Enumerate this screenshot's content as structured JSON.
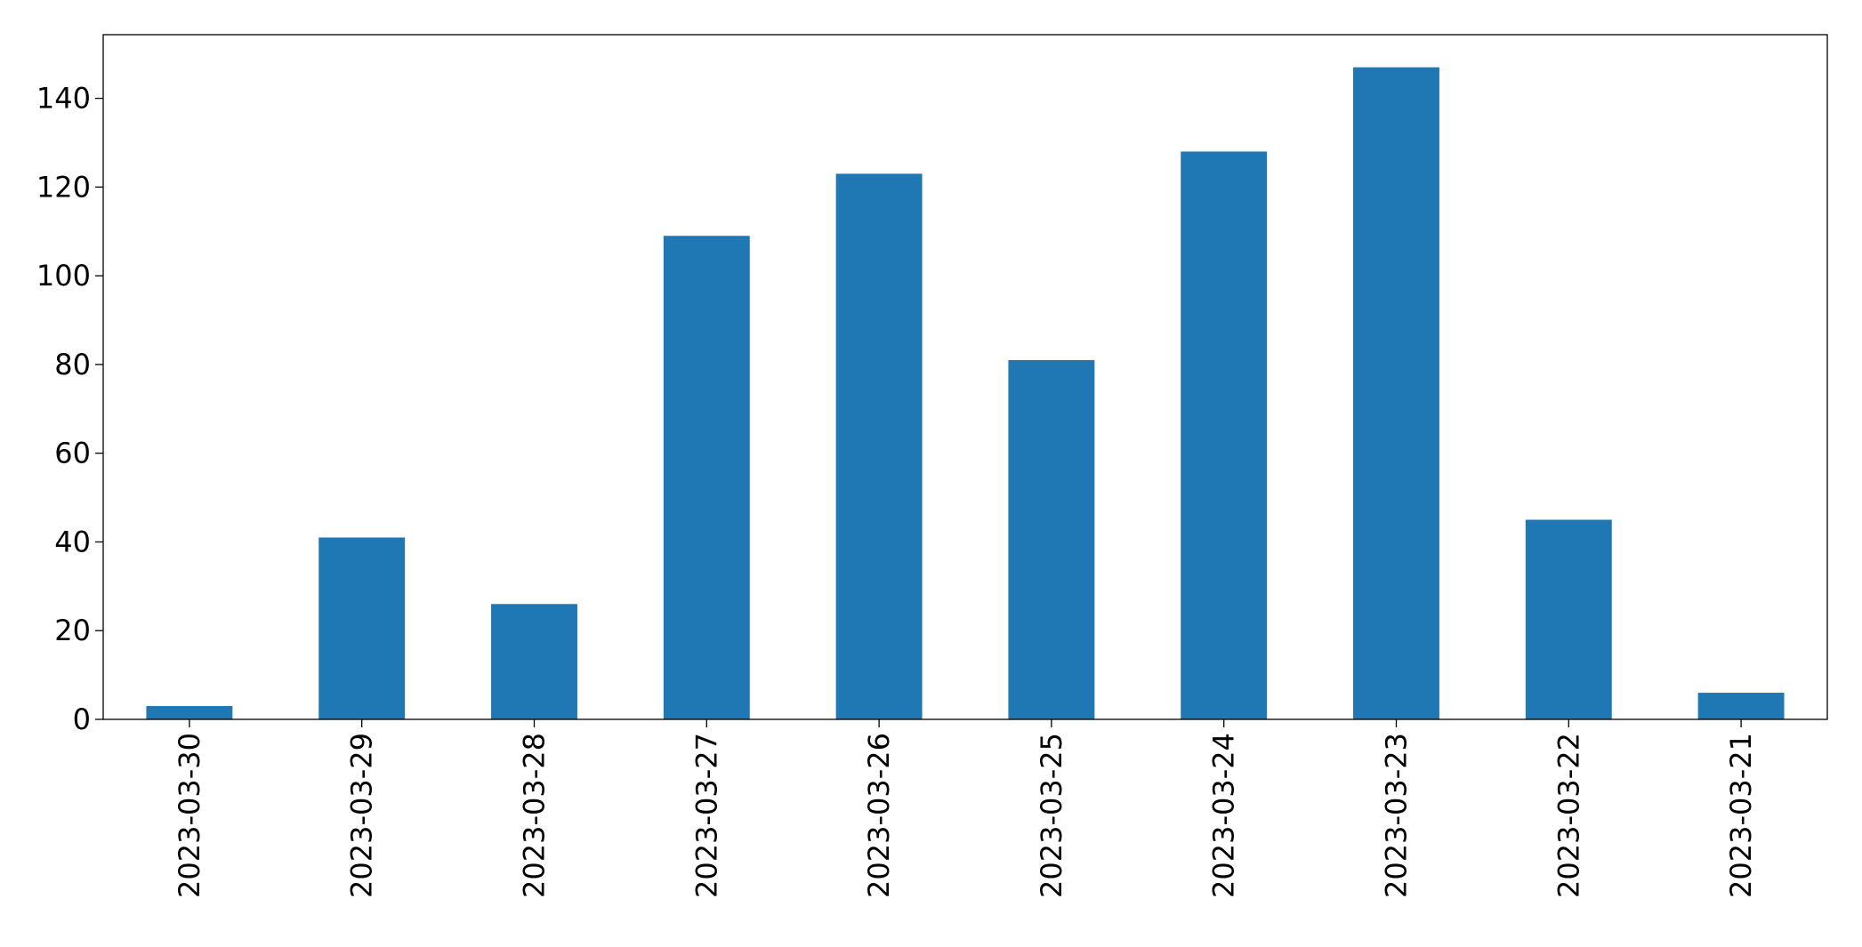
{
  "chart_data": {
    "type": "bar",
    "categories": [
      "2023-03-30",
      "2023-03-29",
      "2023-03-28",
      "2023-03-27",
      "2023-03-26",
      "2023-03-25",
      "2023-03-24",
      "2023-03-23",
      "2023-03-22",
      "2023-03-21"
    ],
    "values": [
      3,
      41,
      26,
      109,
      123,
      81,
      128,
      147,
      45,
      6
    ],
    "color": "#1f77b4",
    "ylim": [
      0,
      154.35
    ],
    "yticks": [
      0,
      20,
      40,
      60,
      80,
      100,
      120,
      140
    ],
    "grid": false
  }
}
